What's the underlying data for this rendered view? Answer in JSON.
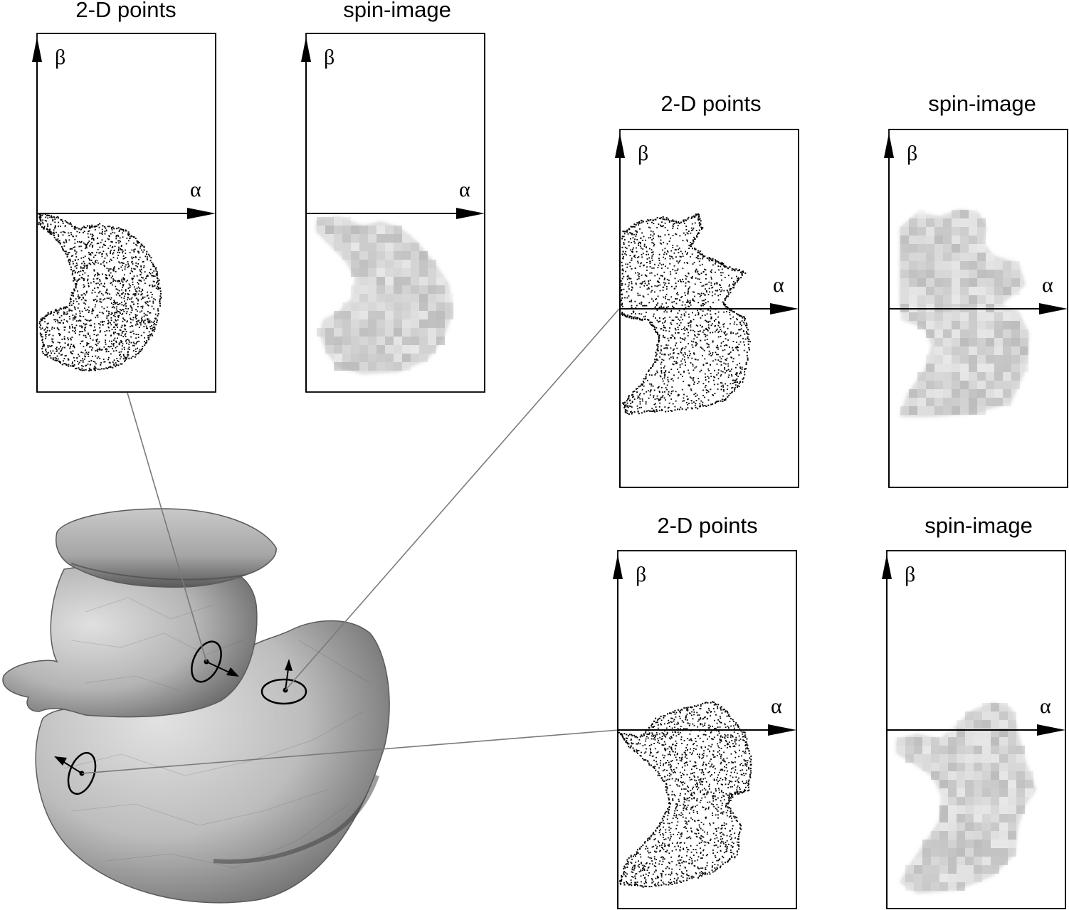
{
  "figure": {
    "panels": [
      {
        "id": "p1",
        "kind": "points",
        "title": "2-D points",
        "beta": "β",
        "alpha": "α"
      },
      {
        "id": "p2",
        "kind": "spin",
        "title": "spin-image",
        "beta": "β",
        "alpha": "α"
      },
      {
        "id": "p3",
        "kind": "points",
        "title": "2-D points",
        "beta": "β",
        "alpha": "α"
      },
      {
        "id": "p4",
        "kind": "spin",
        "title": "spin-image",
        "beta": "β",
        "alpha": "α"
      },
      {
        "id": "p5",
        "kind": "points",
        "title": "2-D points",
        "beta": "β",
        "alpha": "α"
      },
      {
        "id": "p6",
        "kind": "spin",
        "title": "spin-image",
        "beta": "β",
        "alpha": "α"
      }
    ]
  },
  "colors": {
    "line": "#000000",
    "connector": "#7a7a7a",
    "duck_light": "#d9d9d9",
    "duck_mid": "#a8a8a8",
    "duck_dark": "#6f6f6f"
  }
}
